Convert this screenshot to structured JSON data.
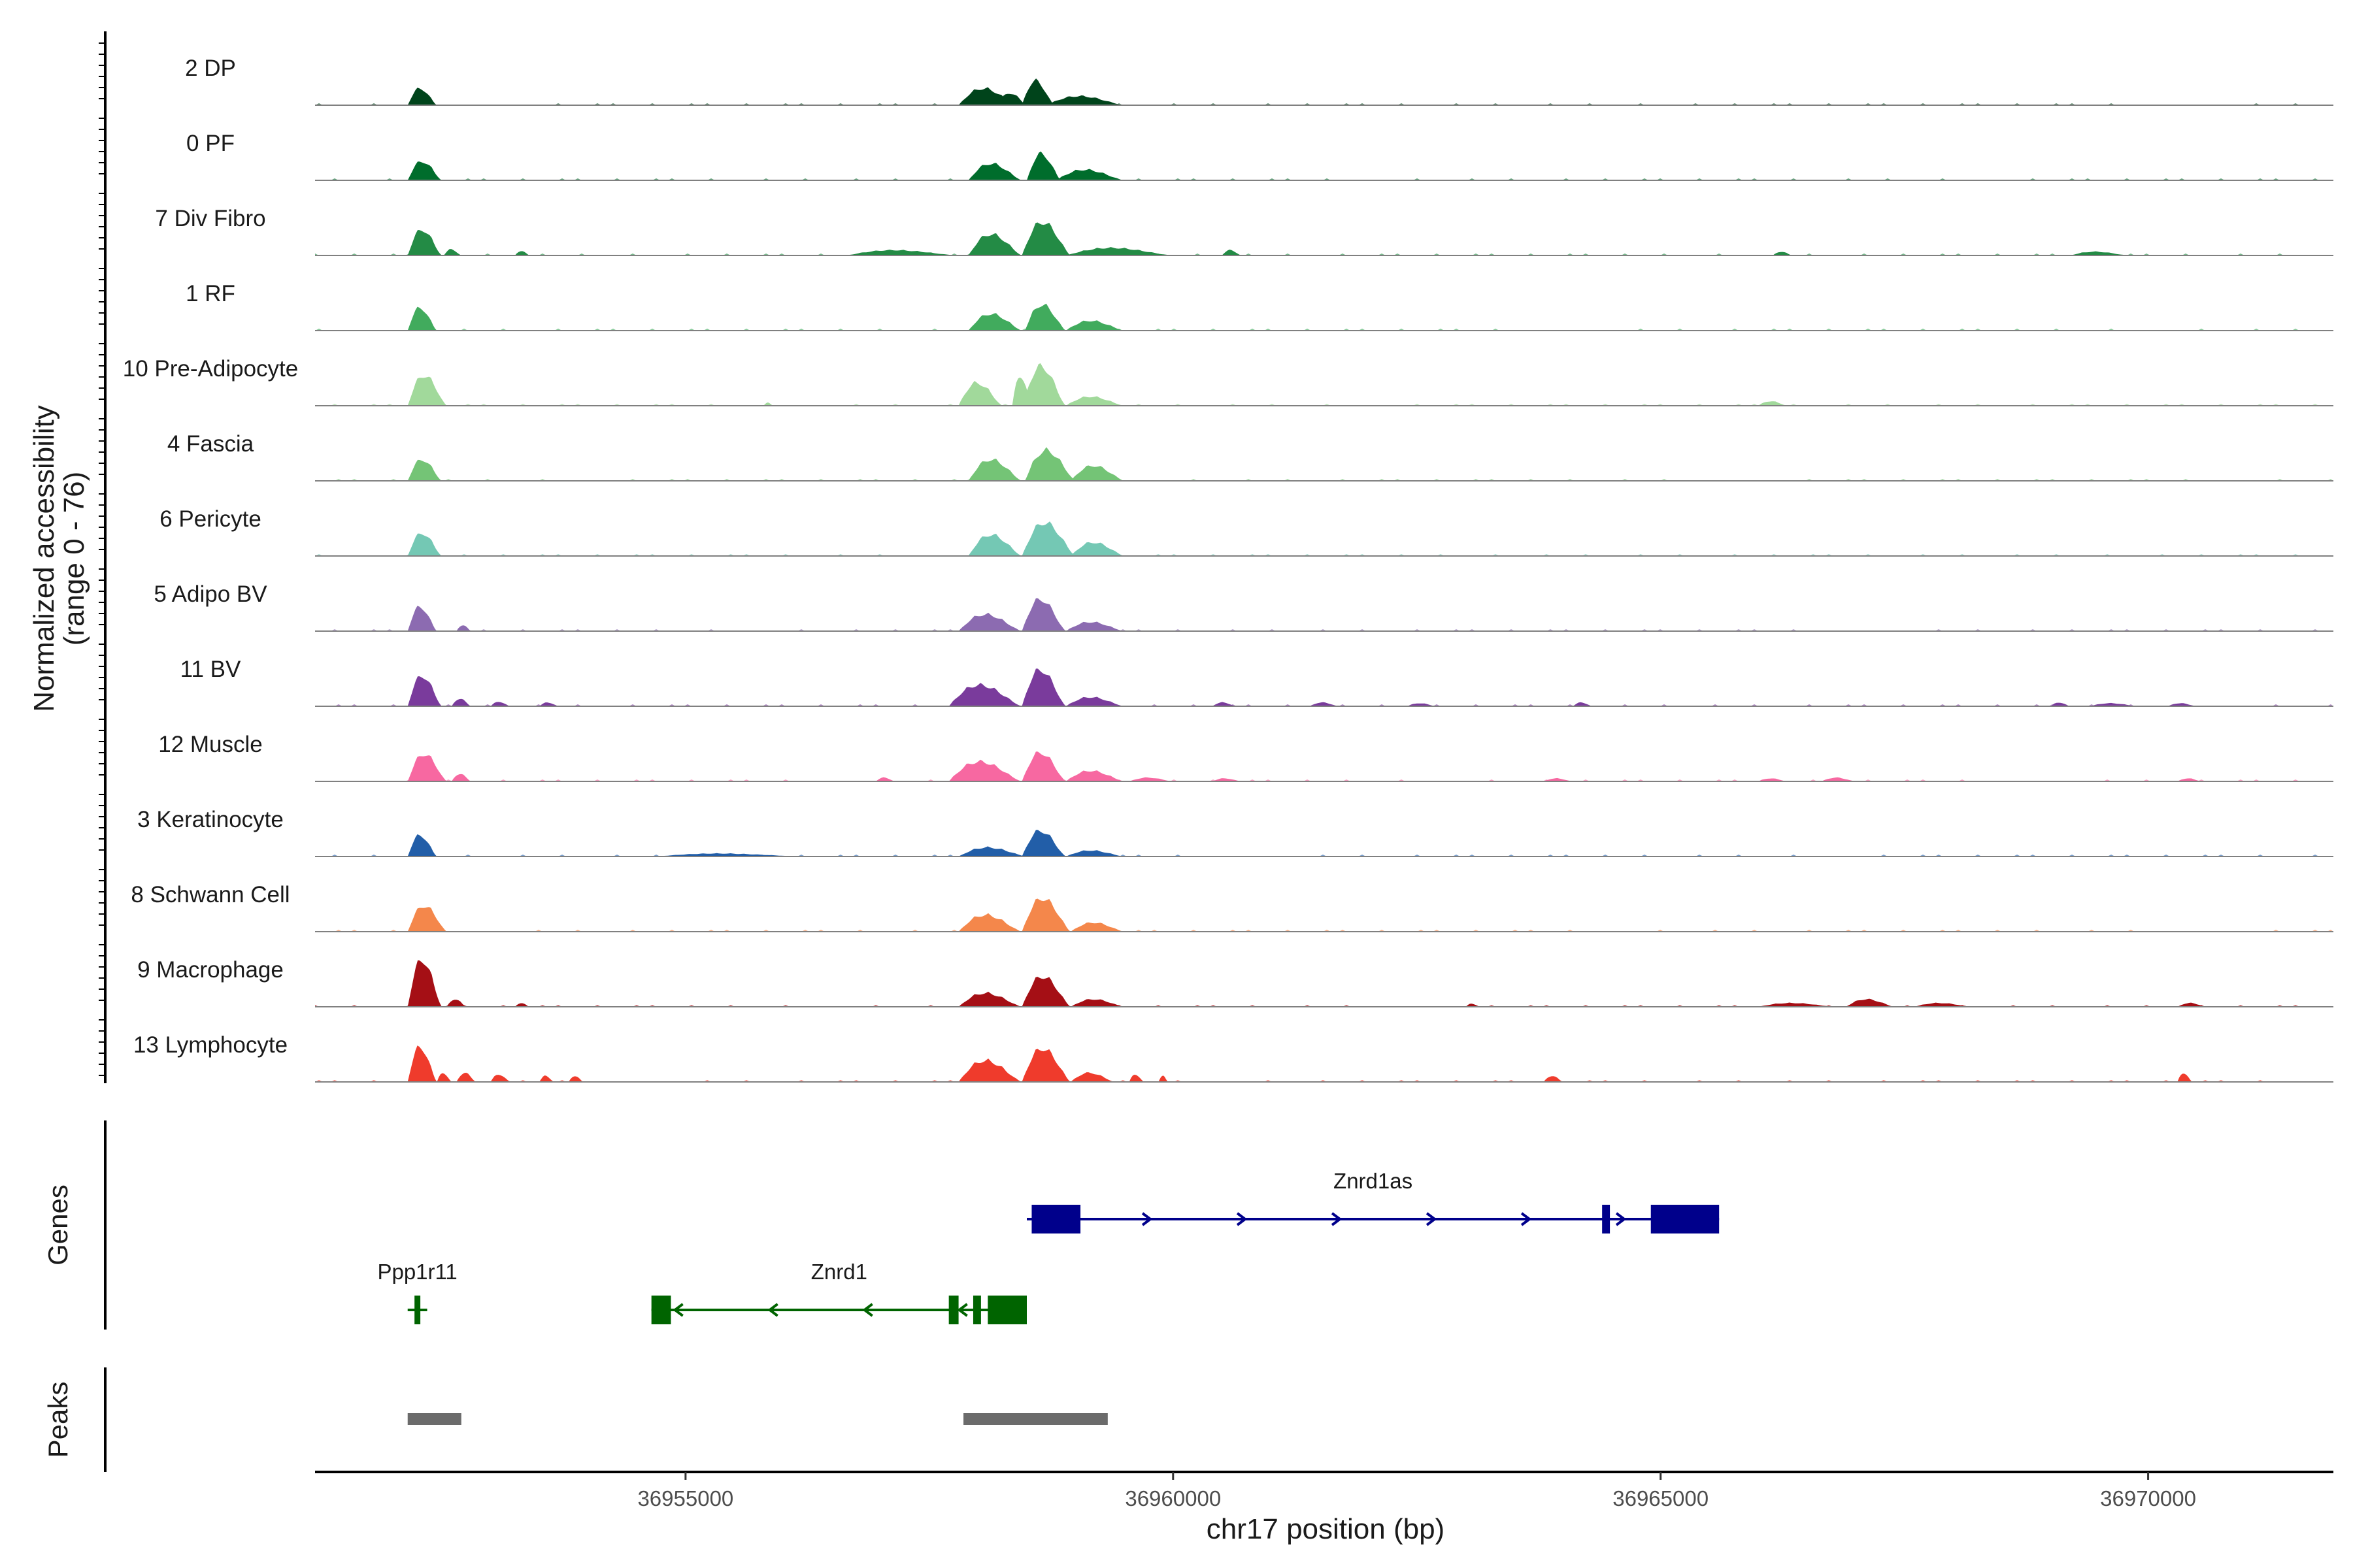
{
  "chart_data": {
    "type": "area",
    "title": "",
    "ylabel": "Normalized accessibility",
    "ylabel_range": "(range 0 - 76)",
    "xlabel": "chr17 position (bp)",
    "chrom": "chr17",
    "xlim": [
      36951200,
      36971900
    ],
    "ylim": [
      0,
      76
    ],
    "x_ticks": [
      36955000,
      36960000,
      36965000,
      36970000
    ],
    "x_tick_labels": [
      "36955000",
      "36960000",
      "36965000",
      "36970000"
    ],
    "tracks": [
      {
        "name": "2 DP",
        "color": "#00441b",
        "peaks": [
          [
            36952150,
            36952450,
            22
          ],
          [
            36956100,
            36956100,
            0
          ],
          [
            36957800,
            36958400,
            22
          ],
          [
            36958200,
            36958500,
            16
          ],
          [
            36958450,
            36958780,
            32
          ],
          [
            36958700,
            36959500,
            12
          ]
        ]
      },
      {
        "name": "0 PF",
        "color": "#006d2c",
        "peaks": [
          [
            36952150,
            36952500,
            25
          ],
          [
            36957900,
            36958450,
            22
          ],
          [
            36958500,
            36958850,
            35
          ],
          [
            36958800,
            36959500,
            14
          ]
        ]
      },
      {
        "name": "7 Div Fibro",
        "color": "#238b45",
        "peaks": [
          [
            36952150,
            36952500,
            34
          ],
          [
            36952520,
            36952700,
            8
          ],
          [
            36953250,
            36953400,
            6
          ],
          [
            36956650,
            36957800,
            7
          ],
          [
            36957900,
            36958450,
            28
          ],
          [
            36958450,
            36958950,
            44
          ],
          [
            36958900,
            36960000,
            10
          ],
          [
            36960500,
            36960700,
            7
          ],
          [
            36966150,
            36966350,
            5
          ],
          [
            36969200,
            36969800,
            5
          ]
        ]
      },
      {
        "name": "1 RF",
        "color": "#41ab5d",
        "peaks": [
          [
            36952150,
            36952450,
            30
          ],
          [
            36957900,
            36958450,
            22
          ],
          [
            36958480,
            36958900,
            34
          ],
          [
            36958900,
            36959500,
            13
          ]
        ]
      },
      {
        "name": "10 Pre-Adipocyte",
        "color": "#a1d99b",
        "peaks": [
          [
            36952150,
            36952550,
            40
          ],
          [
            36955800,
            36955900,
            4
          ],
          [
            36957800,
            36958250,
            30
          ],
          [
            36958350,
            36958550,
            40
          ],
          [
            36958460,
            36958900,
            52
          ],
          [
            36958900,
            36959500,
            12
          ],
          [
            36966000,
            36966300,
            6
          ]
        ]
      },
      {
        "name": "4 Fascia",
        "color": "#74c476",
        "peaks": [
          [
            36952150,
            36952500,
            28
          ],
          [
            36957900,
            36958450,
            28
          ],
          [
            36958480,
            36959000,
            40
          ],
          [
            36958950,
            36959500,
            20
          ]
        ]
      },
      {
        "name": "6 Pericyte",
        "color": "#74c8b4",
        "peaks": [
          [
            36952150,
            36952500,
            30
          ],
          [
            36957900,
            36958450,
            28
          ],
          [
            36958450,
            36959000,
            44
          ],
          [
            36958950,
            36959500,
            18
          ]
        ]
      },
      {
        "name": "5 Adipo BV",
        "color": "#8c6bb1",
        "peaks": [
          [
            36952150,
            36952450,
            32
          ],
          [
            36952650,
            36952800,
            8
          ],
          [
            36957800,
            36958450,
            22
          ],
          [
            36958450,
            36958900,
            42
          ],
          [
            36958900,
            36959500,
            12
          ]
        ]
      },
      {
        "name": "11 BV",
        "color": "#7a3b9c",
        "peaks": [
          [
            36952150,
            36952500,
            40
          ],
          [
            36952600,
            36952800,
            10
          ],
          [
            36953000,
            36953200,
            6
          ],
          [
            36953500,
            36953700,
            5
          ],
          [
            36957700,
            36958450,
            28
          ],
          [
            36958450,
            36958900,
            48
          ],
          [
            36958900,
            36959500,
            12
          ],
          [
            36960400,
            36960650,
            5
          ],
          [
            36961400,
            36961700,
            5
          ],
          [
            36962400,
            36962700,
            4
          ],
          [
            36964100,
            36964300,
            5
          ],
          [
            36969000,
            36969200,
            5
          ],
          [
            36969400,
            36969900,
            4
          ],
          [
            36970200,
            36970500,
            4
          ]
        ]
      },
      {
        "name": "12 Muscle",
        "color": "#f768a1",
        "peaks": [
          [
            36952150,
            36952550,
            36
          ],
          [
            36952600,
            36952800,
            10
          ],
          [
            36956950,
            36957150,
            5
          ],
          [
            36957700,
            36958450,
            26
          ],
          [
            36958450,
            36958900,
            38
          ],
          [
            36958900,
            36959500,
            14
          ],
          [
            36959550,
            36960000,
            5
          ],
          [
            36960400,
            36960700,
            4
          ],
          [
            36963800,
            36964100,
            4
          ],
          [
            36966000,
            36966300,
            4
          ],
          [
            36966650,
            36967000,
            5
          ],
          [
            36970300,
            36970550,
            4
          ]
        ]
      },
      {
        "name": "3 Keratinocyte",
        "color": "#225ea8",
        "peaks": [
          [
            36952150,
            36952450,
            28
          ],
          [
            36954700,
            36956200,
            4
          ],
          [
            36957800,
            36958500,
            12
          ],
          [
            36958450,
            36958900,
            34
          ],
          [
            36958900,
            36959500,
            8
          ]
        ]
      },
      {
        "name": "8 Schwann Cell",
        "color": "#f4874b",
        "peaks": [
          [
            36952150,
            36952550,
            34
          ],
          [
            36957800,
            36958450,
            22
          ],
          [
            36958450,
            36958950,
            44
          ],
          [
            36958950,
            36959500,
            12
          ]
        ]
      },
      {
        "name": "9 Macrophage",
        "color": "#a50f15",
        "peaks": [
          [
            36952150,
            36952500,
            62
          ],
          [
            36952550,
            36952750,
            10
          ],
          [
            36953250,
            36953400,
            5
          ],
          [
            36957800,
            36958450,
            18
          ],
          [
            36958450,
            36958950,
            40
          ],
          [
            36958950,
            36959500,
            10
          ],
          [
            36963000,
            36963150,
            4
          ],
          [
            36966000,
            36966800,
            5
          ],
          [
            36966900,
            36967400,
            10
          ],
          [
            36967600,
            36968200,
            5
          ],
          [
            36970300,
            36970600,
            5
          ]
        ]
      },
      {
        "name": "13 Lymphocyte",
        "color": "#ef3b2c",
        "peaks": [
          [
            36952150,
            36952450,
            46
          ],
          [
            36952450,
            36952600,
            12
          ],
          [
            36952650,
            36952850,
            12
          ],
          [
            36953000,
            36953200,
            10
          ],
          [
            36953500,
            36953650,
            8
          ],
          [
            36953800,
            36953950,
            8
          ],
          [
            36957800,
            36958450,
            28
          ],
          [
            36958450,
            36958950,
            44
          ],
          [
            36958950,
            36959400,
            12
          ],
          [
            36959550,
            36959700,
            10
          ],
          [
            36959850,
            36959950,
            8
          ],
          [
            36963800,
            36964000,
            8
          ],
          [
            36970300,
            36970450,
            12
          ]
        ]
      }
    ],
    "genes_panel_label": "Genes",
    "peaks_panel_label": "Peaks",
    "genes": [
      {
        "name": "Znrd1as",
        "strand": "+",
        "color": "#00008b",
        "start": 36958500,
        "end": 36965600,
        "exons": [
          [
            36958550,
            36959050
          ],
          [
            36964400,
            36964480
          ],
          [
            36964900,
            36965600
          ]
        ]
      },
      {
        "name": "Ppp1r11",
        "strand": "-",
        "color": "#006400",
        "start": 36952150,
        "end": 36952350,
        "exons": [
          [
            36952220,
            36952280
          ]
        ]
      },
      {
        "name": "Znrd1",
        "strand": "-",
        "color": "#006400",
        "start": 36954650,
        "end": 36958500,
        "exons": [
          [
            36954650,
            36954850
          ],
          [
            36957700,
            36957800
          ],
          [
            36957950,
            36958030
          ],
          [
            36958100,
            36958500
          ]
        ]
      }
    ],
    "peak_regions": [
      [
        36952150,
        36952700
      ],
      [
        36957850,
        36959330
      ]
    ]
  }
}
